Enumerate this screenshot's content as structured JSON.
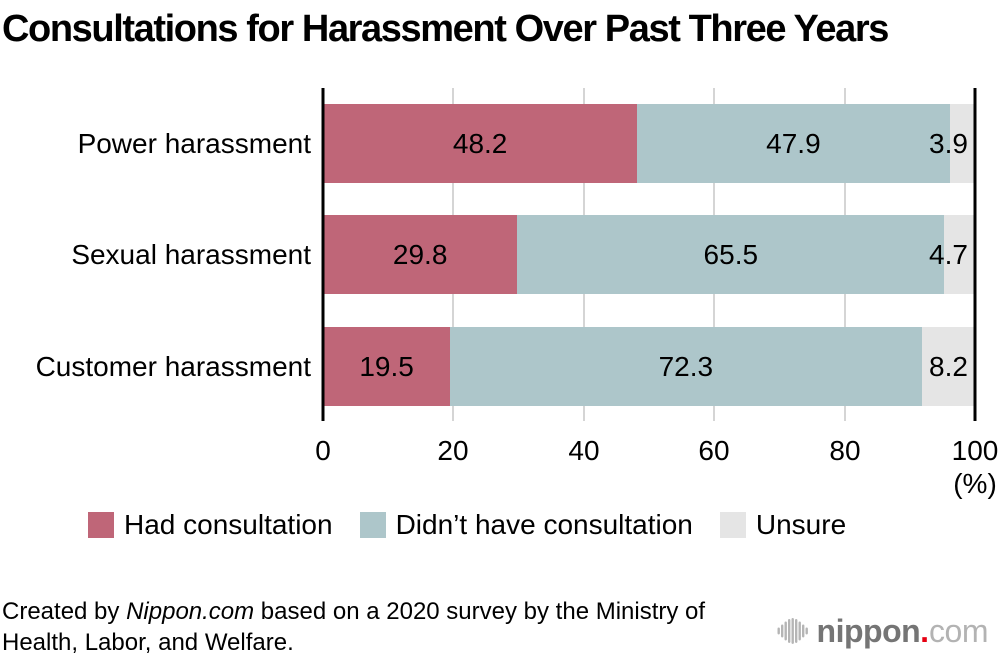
{
  "title": "Consultations for Harassment Over Past Three Years",
  "chart_data": {
    "type": "bar",
    "orientation": "horizontal",
    "stacked": true,
    "title": "Consultations for Harassment Over Past Three Years",
    "categories": [
      "Power harassment",
      "Sexual harassment",
      "Customer harassment"
    ],
    "series": [
      {
        "name": "Had consultation",
        "color": "#bf6678",
        "values": [
          48.2,
          29.8,
          19.5
        ]
      },
      {
        "name": "Didn’t have consultation",
        "color": "#adc6ca",
        "values": [
          47.9,
          65.5,
          72.3
        ]
      },
      {
        "name": "Unsure",
        "color": "#e5e5e5",
        "values": [
          3.9,
          4.7,
          8.2
        ]
      }
    ],
    "xlim": [
      0,
      100
    ],
    "xticks": [
      "0",
      "20",
      "40",
      "60",
      "80",
      "100"
    ],
    "x_unit": "(%)",
    "grid": "vertical-gridlines-at-20s",
    "legend_position": "bottom"
  },
  "footer": {
    "credit_prefix": "Created by ",
    "credit_source": "Nippon.com",
    "credit_suffix": " based on a 2020 survey by the Ministry of Health, Labor, and Welfare."
  },
  "logo": {
    "icon": "soundwave-circle-icon",
    "name": "nippon",
    "dot": ".",
    "tld": "com",
    "dot_color": "#e60012"
  }
}
